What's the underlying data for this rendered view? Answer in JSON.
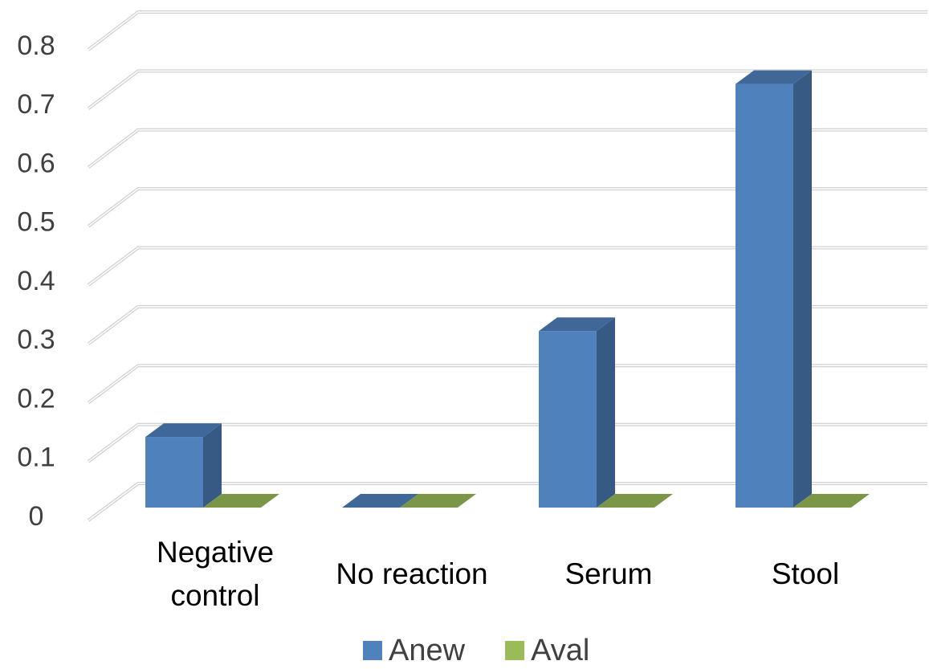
{
  "chart_data": {
    "type": "bar3d",
    "categories": [
      "Negative control",
      "No reaction",
      "Serum",
      "Stool"
    ],
    "series": [
      {
        "name": "Anew",
        "color": "#4f81bd",
        "values": [
          0.12,
          0,
          0.3,
          0.72
        ]
      },
      {
        "name": "Aval",
        "color": "#9bbb59",
        "values": [
          0,
          0,
          0,
          0
        ]
      }
    ],
    "ylim": [
      0,
      0.8
    ],
    "yticks": [
      0,
      0.1,
      0.2,
      0.3,
      0.4,
      0.5,
      0.6,
      0.7,
      0.8
    ],
    "grid": true,
    "legend": "bottom"
  }
}
